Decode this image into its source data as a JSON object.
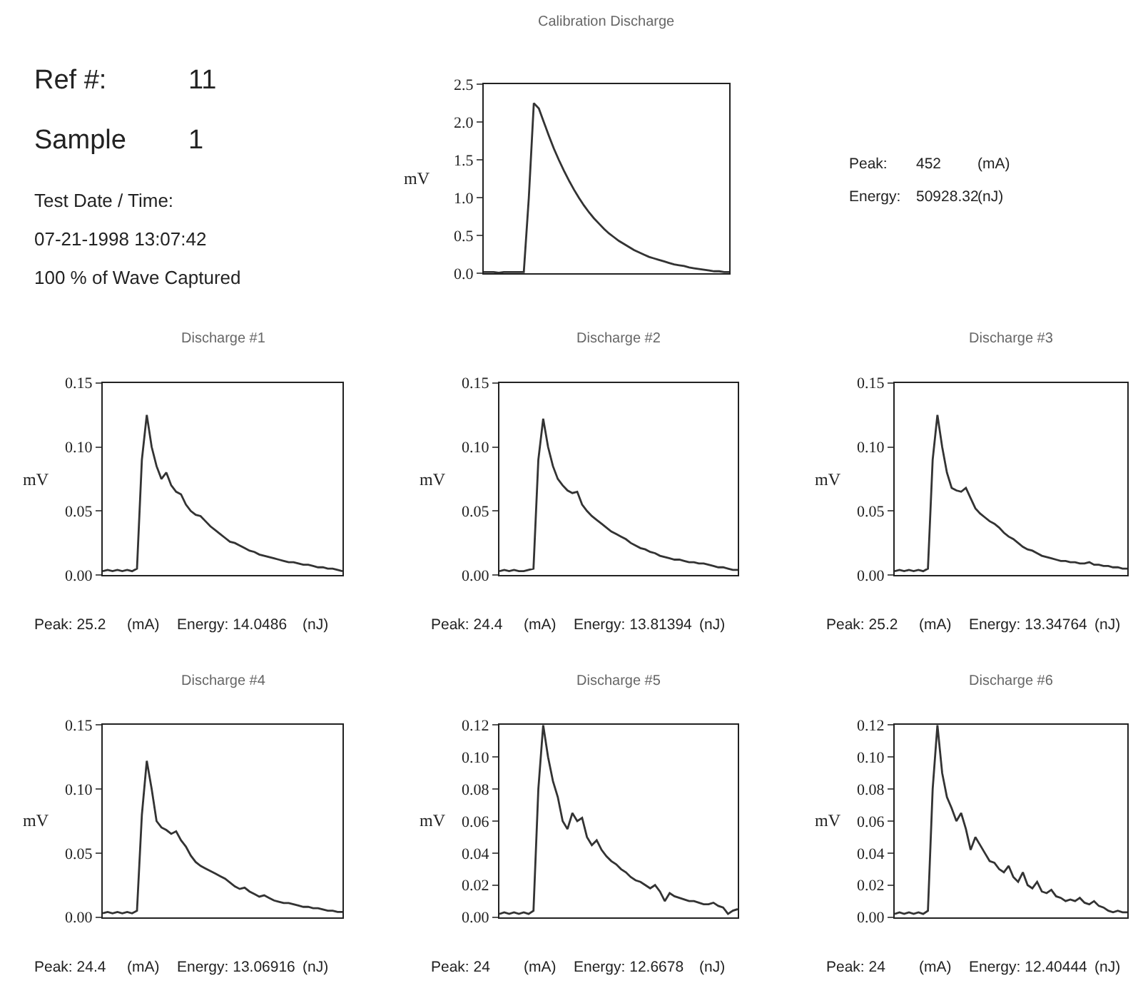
{
  "chart_data": [
    {
      "type": "line",
      "title": "Calibration Discharge",
      "ylabel": "mV",
      "ylim": [
        0,
        2.5
      ],
      "yticks": [
        {
          "value": 0,
          "label": "0.0"
        },
        0.5,
        {
          "value": 1,
          "label": "1.0"
        },
        1.5,
        {
          "value": 2,
          "label": "2.0"
        },
        2.5
      ],
      "tick_labels": "y",
      "marker": "none",
      "line_style": "solid",
      "categories": [
        null,
        null,
        null,
        null,
        null,
        null,
        null,
        null,
        null,
        null,
        null,
        null,
        null,
        null,
        null,
        null,
        null,
        null,
        null,
        null,
        null,
        null,
        null,
        null,
        null,
        null,
        null,
        null,
        null,
        null,
        null,
        null,
        null,
        null,
        null,
        null,
        null,
        null,
        null,
        null,
        null,
        null,
        null,
        null,
        null,
        null,
        null,
        null,
        null,
        null
      ],
      "series": [
        {
          "color": "#333333",
          "values": [
            0.02,
            0.02,
            0.02,
            0.01,
            0.02,
            0.02,
            0.02,
            0.02,
            0.02,
            1.0,
            2.25,
            2.18,
            2.0,
            1.82,
            1.65,
            1.5,
            1.36,
            1.23,
            1.11,
            1.0,
            0.9,
            0.81,
            0.73,
            0.66,
            0.59,
            0.53,
            0.48,
            0.43,
            0.39,
            0.35,
            0.31,
            0.28,
            0.25,
            0.22,
            0.2,
            0.18,
            0.16,
            0.14,
            0.12,
            0.11,
            0.1,
            0.08,
            0.07,
            0.06,
            0.05,
            0.04,
            0.03,
            0.03,
            0.02,
            0.02
          ]
        }
      ],
      "annotations": [
        "Ref #:",
        "11",
        "Sample",
        "1",
        "Test Date / Time:",
        "07-21-1998 13:07:42",
        "100 % of Wave Captured",
        "Peak:",
        "452",
        "(mA)",
        "Energy:",
        "50928.32",
        "(nJ)"
      ]
    },
    {
      "type": "line",
      "title": "Discharge #1",
      "ylabel": "mV",
      "ylim": [
        0,
        0.15
      ],
      "yticks": [
        {
          "value": 0,
          "label": "0.00"
        },
        0.05,
        {
          "value": 0.1,
          "label": "0.10"
        },
        0.15
      ],
      "tick_labels": "y",
      "marker": "none",
      "line_style": "solid",
      "categories": [
        null,
        null,
        null,
        null,
        null,
        null,
        null,
        null,
        null,
        null,
        null,
        null,
        null,
        null,
        null,
        null,
        null,
        null,
        null,
        null,
        null,
        null,
        null,
        null,
        null,
        null,
        null,
        null,
        null,
        null,
        null,
        null,
        null,
        null,
        null,
        null,
        null,
        null,
        null,
        null,
        null,
        null,
        null,
        null,
        null,
        null,
        null,
        null,
        null,
        null
      ],
      "series": [
        {
          "color": "#333333",
          "values": [
            0.003,
            0.004,
            0.003,
            0.004,
            0.003,
            0.004,
            0.003,
            0.005,
            0.09,
            0.125,
            0.1,
            0.085,
            0.075,
            0.08,
            0.07,
            0.065,
            0.063,
            0.055,
            0.05,
            0.047,
            0.046,
            0.042,
            0.038,
            0.035,
            0.032,
            0.029,
            0.026,
            0.025,
            0.023,
            0.021,
            0.019,
            0.018,
            0.016,
            0.015,
            0.014,
            0.013,
            0.012,
            0.011,
            0.01,
            0.01,
            0.009,
            0.008,
            0.008,
            0.007,
            0.006,
            0.006,
            0.005,
            0.005,
            0.004,
            0.003
          ]
        }
      ],
      "annotations": [
        "Peak: 25.2",
        "(mA)",
        "Energy: 14.0486",
        "(nJ)"
      ]
    },
    {
      "type": "line",
      "title": "Discharge #2",
      "ylabel": "mV",
      "ylim": [
        0,
        0.15
      ],
      "yticks": [
        {
          "value": 0,
          "label": "0.00"
        },
        0.05,
        {
          "value": 0.1,
          "label": "0.10"
        },
        0.15
      ],
      "tick_labels": "y",
      "marker": "none",
      "line_style": "solid",
      "categories": [
        null,
        null,
        null,
        null,
        null,
        null,
        null,
        null,
        null,
        null,
        null,
        null,
        null,
        null,
        null,
        null,
        null,
        null,
        null,
        null,
        null,
        null,
        null,
        null,
        null,
        null,
        null,
        null,
        null,
        null,
        null,
        null,
        null,
        null,
        null,
        null,
        null,
        null,
        null,
        null,
        null,
        null,
        null,
        null,
        null,
        null,
        null,
        null,
        null,
        null
      ],
      "series": [
        {
          "color": "#333333",
          "values": [
            0.003,
            0.004,
            0.003,
            0.004,
            0.003,
            0.003,
            0.004,
            0.005,
            0.09,
            0.122,
            0.1,
            0.085,
            0.075,
            0.07,
            0.066,
            0.064,
            0.065,
            0.055,
            0.05,
            0.046,
            0.043,
            0.04,
            0.037,
            0.034,
            0.032,
            0.03,
            0.028,
            0.025,
            0.023,
            0.021,
            0.02,
            0.018,
            0.017,
            0.015,
            0.014,
            0.013,
            0.012,
            0.012,
            0.011,
            0.01,
            0.01,
            0.009,
            0.009,
            0.008,
            0.007,
            0.006,
            0.006,
            0.005,
            0.004,
            0.004
          ]
        }
      ],
      "annotations": [
        "Peak: 24.4",
        "(mA)",
        "Energy: 13.81394",
        "(nJ)"
      ]
    },
    {
      "type": "line",
      "title": "Discharge #3",
      "ylabel": "mV",
      "ylim": [
        0,
        0.15
      ],
      "yticks": [
        {
          "value": 0,
          "label": "0.00"
        },
        0.05,
        {
          "value": 0.1,
          "label": "0.10"
        },
        0.15
      ],
      "tick_labels": "y",
      "marker": "none",
      "line_style": "solid",
      "categories": [
        null,
        null,
        null,
        null,
        null,
        null,
        null,
        null,
        null,
        null,
        null,
        null,
        null,
        null,
        null,
        null,
        null,
        null,
        null,
        null,
        null,
        null,
        null,
        null,
        null,
        null,
        null,
        null,
        null,
        null,
        null,
        null,
        null,
        null,
        null,
        null,
        null,
        null,
        null,
        null,
        null,
        null,
        null,
        null,
        null,
        null,
        null,
        null,
        null,
        null
      ],
      "series": [
        {
          "color": "#333333",
          "values": [
            0.003,
            0.004,
            0.003,
            0.004,
            0.003,
            0.004,
            0.003,
            0.005,
            0.09,
            0.125,
            0.1,
            0.08,
            0.068,
            0.066,
            0.065,
            0.068,
            0.06,
            0.052,
            0.048,
            0.045,
            0.042,
            0.04,
            0.037,
            0.033,
            0.03,
            0.028,
            0.025,
            0.022,
            0.02,
            0.019,
            0.017,
            0.015,
            0.014,
            0.013,
            0.012,
            0.011,
            0.011,
            0.01,
            0.01,
            0.009,
            0.009,
            0.01,
            0.008,
            0.008,
            0.007,
            0.007,
            0.006,
            0.006,
            0.005,
            0.005
          ]
        }
      ],
      "annotations": [
        "Peak: 25.2",
        "(mA)",
        "Energy: 13.34764",
        "(nJ)"
      ]
    },
    {
      "type": "line",
      "title": "Discharge #4",
      "ylabel": "mV",
      "ylim": [
        0,
        0.15
      ],
      "yticks": [
        {
          "value": 0,
          "label": "0.00"
        },
        0.05,
        {
          "value": 0.1,
          "label": "0.10"
        },
        0.15
      ],
      "tick_labels": "y",
      "marker": "none",
      "line_style": "solid",
      "categories": [
        null,
        null,
        null,
        null,
        null,
        null,
        null,
        null,
        null,
        null,
        null,
        null,
        null,
        null,
        null,
        null,
        null,
        null,
        null,
        null,
        null,
        null,
        null,
        null,
        null,
        null,
        null,
        null,
        null,
        null,
        null,
        null,
        null,
        null,
        null,
        null,
        null,
        null,
        null,
        null,
        null,
        null,
        null,
        null,
        null,
        null,
        null,
        null,
        null,
        null
      ],
      "series": [
        {
          "color": "#333333",
          "values": [
            0.003,
            0.004,
            0.003,
            0.004,
            0.003,
            0.004,
            0.003,
            0.005,
            0.08,
            0.122,
            0.1,
            0.075,
            0.07,
            0.068,
            0.065,
            0.067,
            0.06,
            0.055,
            0.048,
            0.043,
            0.04,
            0.038,
            0.036,
            0.034,
            0.032,
            0.03,
            0.027,
            0.024,
            0.022,
            0.023,
            0.02,
            0.018,
            0.016,
            0.017,
            0.015,
            0.013,
            0.012,
            0.011,
            0.011,
            0.01,
            0.009,
            0.008,
            0.008,
            0.007,
            0.007,
            0.006,
            0.005,
            0.005,
            0.004,
            0.004
          ]
        }
      ],
      "annotations": [
        "Peak: 24.4",
        "(mA)",
        "Energy: 13.06916",
        "(nJ)"
      ]
    },
    {
      "type": "line",
      "title": "Discharge #5",
      "ylabel": "mV",
      "ylim": [
        0,
        0.12
      ],
      "yticks": [
        {
          "value": 0,
          "label": "0.00"
        },
        0.02,
        0.04,
        0.06,
        0.08,
        {
          "value": 0.1,
          "label": "0.10"
        },
        0.12
      ],
      "tick_labels": "y",
      "marker": "none",
      "line_style": "solid",
      "categories": [
        null,
        null,
        null,
        null,
        null,
        null,
        null,
        null,
        null,
        null,
        null,
        null,
        null,
        null,
        null,
        null,
        null,
        null,
        null,
        null,
        null,
        null,
        null,
        null,
        null,
        null,
        null,
        null,
        null,
        null,
        null,
        null,
        null,
        null,
        null,
        null,
        null,
        null,
        null,
        null,
        null,
        null,
        null,
        null,
        null,
        null,
        null,
        null,
        null,
        null
      ],
      "series": [
        {
          "color": "#333333",
          "values": [
            0.002,
            0.003,
            0.002,
            0.003,
            0.002,
            0.003,
            0.002,
            0.004,
            0.08,
            0.12,
            0.1,
            0.085,
            0.075,
            0.06,
            0.055,
            0.065,
            0.06,
            0.062,
            0.05,
            0.045,
            0.048,
            0.042,
            0.038,
            0.035,
            0.033,
            0.03,
            0.028,
            0.025,
            0.023,
            0.022,
            0.02,
            0.018,
            0.02,
            0.016,
            0.01,
            0.015,
            0.013,
            0.012,
            0.011,
            0.01,
            0.01,
            0.009,
            0.008,
            0.008,
            0.009,
            0.007,
            0.006,
            0.002,
            0.004,
            0.005
          ]
        }
      ],
      "annotations": [
        "Peak: 24",
        "(mA)",
        "Energy: 12.6678",
        "(nJ)"
      ]
    },
    {
      "type": "line",
      "title": "Discharge #6",
      "ylabel": "mV",
      "ylim": [
        0,
        0.12
      ],
      "yticks": [
        {
          "value": 0,
          "label": "0.00"
        },
        0.02,
        0.04,
        0.06,
        0.08,
        {
          "value": 0.1,
          "label": "0.10"
        },
        0.12
      ],
      "tick_labels": "y",
      "marker": "none",
      "line_style": "solid",
      "categories": [
        null,
        null,
        null,
        null,
        null,
        null,
        null,
        null,
        null,
        null,
        null,
        null,
        null,
        null,
        null,
        null,
        null,
        null,
        null,
        null,
        null,
        null,
        null,
        null,
        null,
        null,
        null,
        null,
        null,
        null,
        null,
        null,
        null,
        null,
        null,
        null,
        null,
        null,
        null,
        null,
        null,
        null,
        null,
        null,
        null,
        null,
        null,
        null,
        null,
        null
      ],
      "series": [
        {
          "color": "#333333",
          "values": [
            0.002,
            0.003,
            0.002,
            0.003,
            0.002,
            0.003,
            0.002,
            0.004,
            0.08,
            0.12,
            0.09,
            0.075,
            0.068,
            0.06,
            0.065,
            0.055,
            0.042,
            0.05,
            0.045,
            0.04,
            0.035,
            0.034,
            0.03,
            0.028,
            0.032,
            0.025,
            0.022,
            0.028,
            0.02,
            0.018,
            0.022,
            0.016,
            0.015,
            0.017,
            0.013,
            0.012,
            0.01,
            0.011,
            0.01,
            0.012,
            0.009,
            0.008,
            0.01,
            0.007,
            0.006,
            0.004,
            0.003,
            0.004,
            0.003,
            0.003
          ]
        }
      ],
      "annotations": [
        "Peak: 24",
        "(mA)",
        "Energy: 12.40444",
        "(nJ)"
      ]
    }
  ]
}
